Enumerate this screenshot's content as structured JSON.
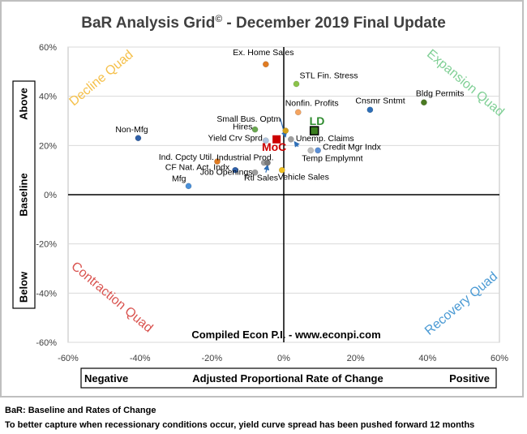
{
  "chart_data": {
    "type": "scatter",
    "title": "BaR Analysis Grid",
    "title_mark": "©",
    "title_suffix": " - December 2019 Final Update",
    "xlim": [
      -60,
      60
    ],
    "ylim": [
      -60,
      60
    ],
    "x_ticks": [
      "-60%",
      "-40%",
      "-20%",
      "0%",
      "20%",
      "40%",
      "60%"
    ],
    "y_ticks": [
      "60%",
      "40%",
      "20%",
      "0%",
      "-20%",
      "-40%",
      "-60%"
    ],
    "y_axis_labels": [
      "Above",
      "Baseline",
      "Below"
    ],
    "x_axis_labels": [
      "Negative",
      "Adjusted Proportional Rate of Change",
      "Positive"
    ],
    "quadrants": [
      {
        "name": "Decline Quad",
        "color": "#f5c04a"
      },
      {
        "name": "Expansion Quad",
        "color": "#7fcf95"
      },
      {
        "name": "Contraction Quad",
        "color": "#d9534f"
      },
      {
        "name": "Recovery Quad",
        "color": "#4a9ad4"
      }
    ],
    "watermark": "Compiled Econ P.I. - www.econpi.com",
    "points": [
      {
        "name": "Ex. Home Sales",
        "x": -5,
        "y": 53,
        "color": "#e07b22"
      },
      {
        "name": "STL Fin. Stress",
        "x": 3.5,
        "y": 45,
        "color": "#8bc34a"
      },
      {
        "name": "Nonfin. Profits",
        "x": 4,
        "y": 33.5,
        "color": "#f4a460"
      },
      {
        "name": "Cnsmr Sntmt",
        "x": 24,
        "y": 34.5,
        "color": "#2e6fb7"
      },
      {
        "name": "Bldg Permits",
        "x": 39,
        "y": 37.5,
        "color": "#4a7a22"
      },
      {
        "name": "Small Bus. Optm",
        "x": 0.5,
        "y": 26,
        "color": "#d4a017"
      },
      {
        "name": "Hires",
        "x": -8,
        "y": 26.5,
        "color": "#6aa84f"
      },
      {
        "name": "LD",
        "x": 8.5,
        "y": 26,
        "color": "#3a7d1e"
      },
      {
        "name": "Non-Mfg",
        "x": -40.5,
        "y": 23,
        "color": "#2e5fa8"
      },
      {
        "name": "Yield Crv Sprd",
        "x": -5,
        "y": 22,
        "color": "#b0c4de"
      },
      {
        "name": "MoC",
        "x": -2,
        "y": 22.5,
        "color": "#cc0000"
      },
      {
        "name": "Unemp. Claims",
        "x": 2,
        "y": 22.5,
        "color": "#9e9e9e"
      },
      {
        "name": "Credit Mgr Indx",
        "x": 9.5,
        "y": 18,
        "color": "#5b8fd6"
      },
      {
        "name": "Temp Emplymnt",
        "x": 7.5,
        "y": 18,
        "color": "#bdbdbd"
      },
      {
        "name": "Ind. Cpcty Util.",
        "x": -18.5,
        "y": 13.5,
        "color": "#e07b22"
      },
      {
        "name": "Industrial Prod.",
        "x": -5.5,
        "y": 13,
        "color": "#9e9e9e"
      },
      {
        "name": "CF Nat. Act. Indx",
        "x": -13.5,
        "y": 10,
        "color": "#2e5fa8"
      },
      {
        "name": "Job Openings",
        "x": -8,
        "y": 9,
        "color": "#9e9e9e"
      },
      {
        "name": "Vehicle Sales",
        "x": -0.5,
        "y": 10,
        "color": "#f0c020"
      },
      {
        "name": "Mfg",
        "x": -26.5,
        "y": 3.5,
        "color": "#4a90d9"
      },
      {
        "name": "Rtl Sales",
        "x": -4.5,
        "y": 13,
        "color": "#7a7a7a"
      }
    ]
  },
  "footer": {
    "line1": "BaR: Baseline and Rates of Change",
    "line2": "To better capture when recessionary conditions occur, yield curve spread has been pushed forward 12 months"
  }
}
